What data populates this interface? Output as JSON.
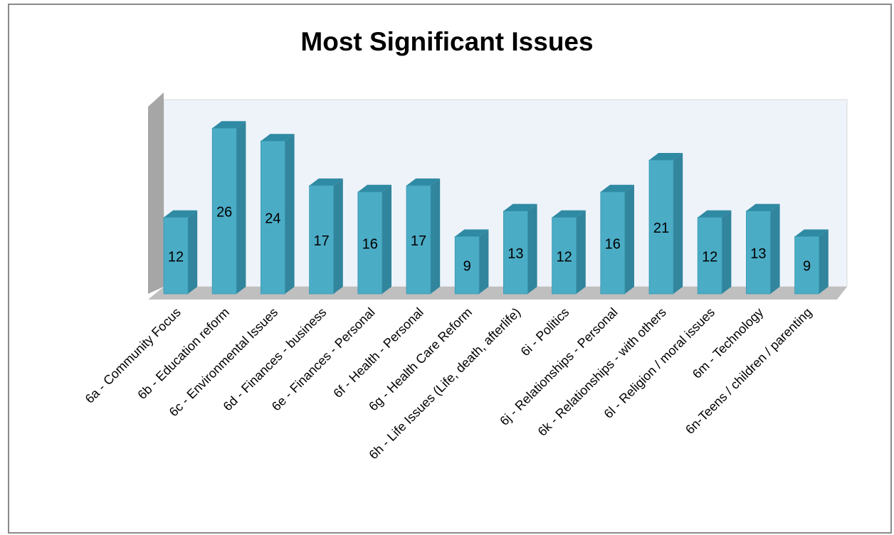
{
  "chart_data": {
    "type": "bar",
    "title": "Most Significant Issues",
    "xlabel": "",
    "ylabel": "",
    "ylim": [
      0,
      30
    ],
    "grid": false,
    "legend": "none",
    "three_d": true,
    "colors": {
      "bar_front": "#4bacc6",
      "bar_side": "#31859c",
      "bar_top": "#2f8aa3",
      "back_wall": "#eef3fa",
      "side_wall": "#a6a6a6",
      "floor": "#bfbfbf"
    },
    "categories": [
      "6a - Community Focus",
      "6b - Education reform",
      "6c - Environmental Issues",
      "6d - Finances - business",
      "6e - Finances - Personal",
      "6f - Health - Personal",
      "6g - Health Care Reform",
      "6h - Life Issues (Life, death, afterlife)",
      "6i - Politics",
      "6j - Relationships - Personal",
      "6k - Relationships - with others",
      "6l - Religion / moral issues",
      "6m - Technology",
      "6n-Teens / children / parenting"
    ],
    "values": [
      12,
      26,
      24,
      17,
      16,
      17,
      9,
      13,
      12,
      16,
      21,
      12,
      13,
      9
    ]
  }
}
